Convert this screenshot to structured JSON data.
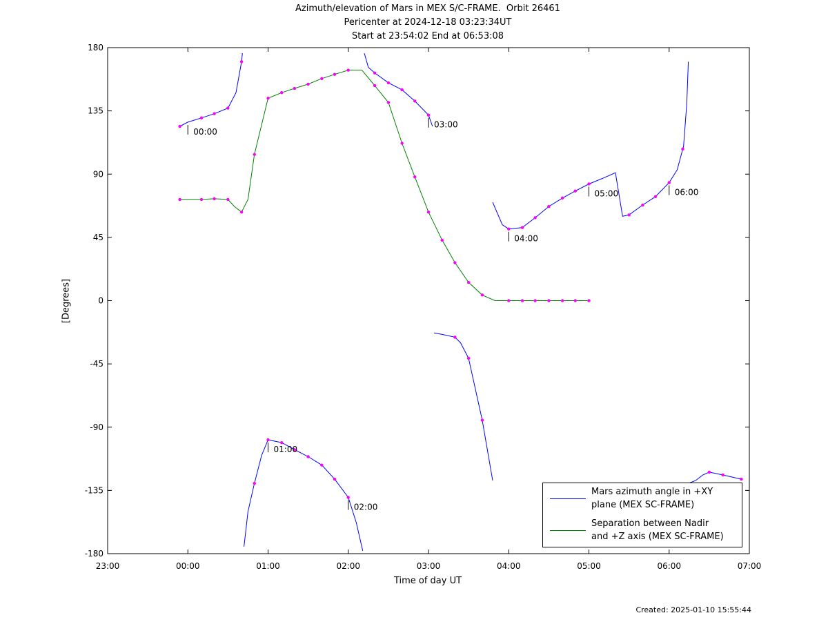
{
  "title": {
    "line1": "Azimuth/elevation of Mars in MEX S/C-FRAME.  Orbit 26461",
    "line2": "Pericenter at 2024-12-18 03:23:34UT",
    "line3": "Start at 23:54:02 End at 06:53:08"
  },
  "footer": {
    "created": "Created: 2025-01-10 15:55:44"
  },
  "colors": {
    "azimuth": "#0000ff",
    "separation": "#008000",
    "marker": "#ff00ff",
    "endpoint": "#00ff00"
  },
  "chart_data": {
    "type": "line",
    "xlabel": "Time of day UT",
    "ylabel": "[Degrees]",
    "x_unit": "hours relative to 00:00 UT",
    "xlim": [
      -1,
      7
    ],
    "ylim": [
      -180,
      180
    ],
    "x_ticks": [
      {
        "value": -1,
        "label": "23:00"
      },
      {
        "value": 0,
        "label": "00:00"
      },
      {
        "value": 1,
        "label": "01:00"
      },
      {
        "value": 2,
        "label": "02:00"
      },
      {
        "value": 3,
        "label": "03:00"
      },
      {
        "value": 4,
        "label": "04:00"
      },
      {
        "value": 5,
        "label": "05:00"
      },
      {
        "value": 6,
        "label": "06:00"
      },
      {
        "value": 7,
        "label": "07:00"
      }
    ],
    "y_ticks": [
      180,
      135,
      90,
      45,
      0,
      -45,
      -90,
      -135,
      -180
    ],
    "grid": false,
    "legend_position": "bottom-right",
    "series": [
      {
        "name": "Mars azimuth angle in +XY\nplane (MEX SC-FRAME)",
        "color": "#0000ff",
        "segments": [
          [
            [
              -0.1,
              124
            ],
            [
              0,
              127
            ],
            [
              0.17,
              130
            ],
            [
              0.33,
              133
            ],
            [
              0.5,
              137
            ],
            [
              0.6,
              148
            ],
            [
              0.67,
              170
            ],
            [
              0.68,
              176
            ]
          ],
          [
            [
              0.7,
              -175
            ],
            [
              0.75,
              -150
            ],
            [
              0.83,
              -130
            ],
            [
              0.92,
              -110
            ],
            [
              1.0,
              -99
            ],
            [
              1.17,
              -101
            ],
            [
              1.33,
              -106
            ],
            [
              1.5,
              -111
            ],
            [
              1.67,
              -117
            ],
            [
              1.83,
              -127
            ],
            [
              2.0,
              -140
            ],
            [
              2.1,
              -158
            ],
            [
              2.18,
              -178
            ]
          ],
          [
            [
              2.2,
              176
            ],
            [
              2.25,
              166
            ],
            [
              2.33,
              162
            ],
            [
              2.5,
              155
            ],
            [
              2.67,
              150
            ],
            [
              2.83,
              142
            ],
            [
              3.0,
              132
            ],
            [
              3.05,
              124
            ]
          ],
          [
            [
              3.07,
              -23
            ],
            [
              3.17,
              -24
            ],
            [
              3.33,
              -26
            ],
            [
              3.4,
              -30
            ],
            [
              3.5,
              -41
            ],
            [
              3.67,
              -85
            ],
            [
              3.8,
              -128
            ]
          ],
          [
            [
              3.8,
              70
            ],
            [
              3.83,
              66
            ],
            [
              3.92,
              54
            ],
            [
              4.0,
              51
            ],
            [
              4.17,
              52
            ],
            [
              4.33,
              59
            ],
            [
              4.5,
              67
            ],
            [
              4.67,
              73
            ],
            [
              4.83,
              78
            ],
            [
              5.0,
              83
            ],
            [
              5.17,
              87
            ],
            [
              5.33,
              91
            ],
            [
              5.42,
              60
            ],
            [
              5.5,
              61
            ],
            [
              5.67,
              68
            ],
            [
              5.83,
              74
            ],
            [
              6.0,
              84
            ],
            [
              6.1,
              93
            ],
            [
              6.18,
              110
            ],
            [
              6.22,
              140
            ],
            [
              6.24,
              170
            ]
          ],
          [
            [
              6.24,
              -130
            ],
            [
              6.33,
              -128
            ],
            [
              6.42,
              -124
            ],
            [
              6.5,
              -122
            ],
            [
              6.67,
              -124
            ],
            [
              6.9,
              -127
            ]
          ]
        ],
        "markers": [
          -0.1,
          0.17,
          0.33,
          0.5,
          0.67,
          0.83,
          1.0,
          1.17,
          1.33,
          1.5,
          1.67,
          1.83,
          2.0,
          2.33,
          2.5,
          2.67,
          2.83,
          3.0,
          3.33,
          3.5,
          3.67,
          4.0,
          4.17,
          4.33,
          4.5,
          4.67,
          4.83,
          5.0,
          5.5,
          5.67,
          5.83,
          6.0,
          6.17,
          6.5,
          6.67,
          6.9
        ]
      },
      {
        "name": "Separation between Nadir\nand +Z axis (MEX SC-FRAME)",
        "color": "#008000",
        "segments": [
          [
            [
              -0.1,
              72
            ],
            [
              0,
              72
            ],
            [
              0.17,
              72
            ],
            [
              0.33,
              72.5
            ],
            [
              0.5,
              72
            ],
            [
              0.58,
              67
            ],
            [
              0.67,
              63
            ],
            [
              0.75,
              72
            ],
            [
              0.83,
              104
            ],
            [
              1.0,
              144
            ],
            [
              1.17,
              148
            ],
            [
              1.33,
              151
            ],
            [
              1.5,
              154
            ],
            [
              1.67,
              158
            ],
            [
              1.83,
              161
            ],
            [
              2.0,
              164
            ],
            [
              2.17,
              164
            ],
            [
              2.33,
              153
            ],
            [
              2.5,
              141
            ],
            [
              2.67,
              112
            ],
            [
              2.83,
              88
            ],
            [
              3.0,
              63
            ],
            [
              3.17,
              43
            ],
            [
              3.33,
              27
            ],
            [
              3.5,
              13
            ],
            [
              3.67,
              4
            ],
            [
              3.83,
              0
            ],
            [
              4.0,
              0
            ],
            [
              4.17,
              0
            ],
            [
              4.33,
              0
            ],
            [
              4.5,
              0
            ],
            [
              4.67,
              0
            ],
            [
              4.83,
              0
            ],
            [
              5.0,
              0
            ]
          ],
          []
        ],
        "markers": [
          -0.1,
          0.17,
          0.33,
          0.5,
          0.67,
          0.83,
          1.0,
          1.17,
          1.33,
          1.5,
          1.67,
          1.83,
          2.0,
          2.33,
          2.5,
          2.67,
          2.83,
          3.0,
          3.17,
          3.33,
          3.5,
          3.67,
          4.0,
          4.17,
          4.33,
          4.5,
          4.67,
          4.83,
          5.0
        ]
      }
    ],
    "time_labels": [
      {
        "x": 0,
        "text": "00:00"
      },
      {
        "x": 1,
        "text": "01:00"
      },
      {
        "x": 2,
        "text": "02:00"
      },
      {
        "x": 3,
        "text": "03:00"
      },
      {
        "x": 4,
        "text": "04:00"
      },
      {
        "x": 5,
        "text": "05:00"
      },
      {
        "x": 6,
        "text": "06:00"
      }
    ]
  }
}
